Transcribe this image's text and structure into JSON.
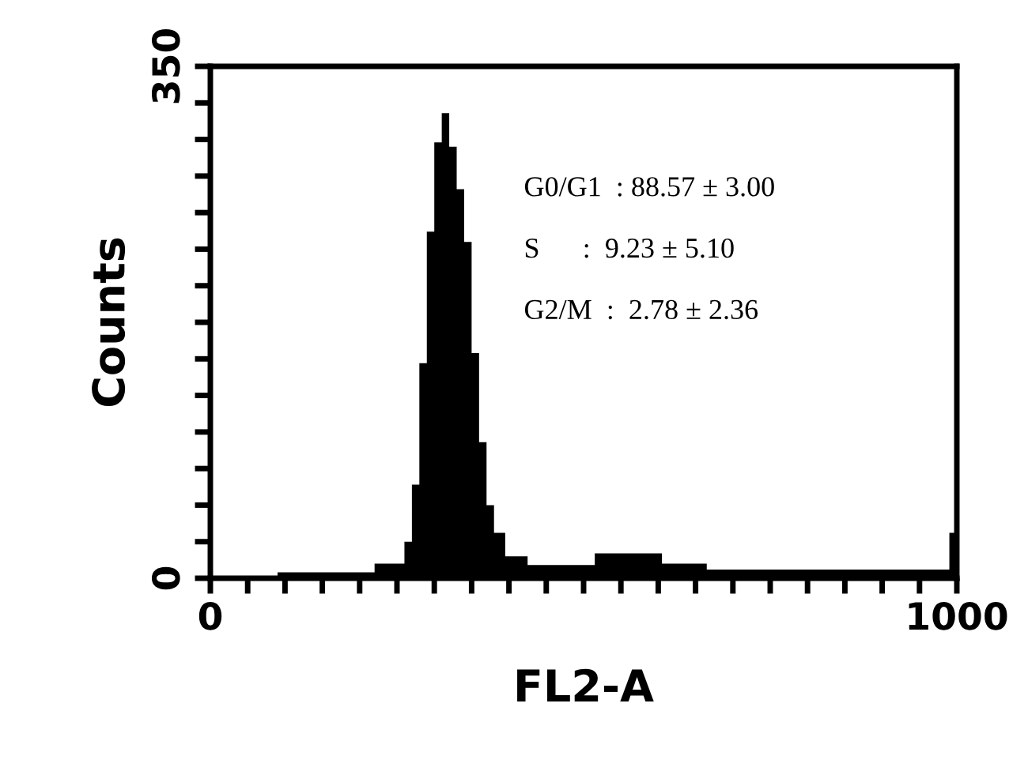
{
  "chart_data": {
    "type": "histogram",
    "xlabel": "FL2-A",
    "ylabel": "Counts",
    "bins": [
      0,
      90,
      220,
      260,
      270,
      280,
      290,
      300,
      310,
      320,
      330,
      340,
      350,
      360,
      370,
      380,
      395,
      425,
      515,
      605,
      665,
      990,
      1000
    ],
    "values": [
      0,
      4,
      10,
      25,
      64,
      147,
      237,
      298,
      318,
      295,
      266,
      230,
      154,
      93,
      50,
      31,
      15,
      9,
      17,
      10,
      6,
      31
    ],
    "color": "#000000",
    "xlim": [
      0,
      1000
    ],
    "xticks": [
      0,
      {
        "value": 50,
        "label": null
      },
      {
        "value": 100,
        "label": null
      },
      {
        "value": 150,
        "label": null
      },
      {
        "value": 200,
        "label": null
      },
      {
        "value": 250,
        "label": null
      },
      {
        "value": 300,
        "label": null
      },
      {
        "value": 350,
        "label": null
      },
      {
        "value": 400,
        "label": null
      },
      {
        "value": 450,
        "label": null
      },
      {
        "value": 500,
        "label": null
      },
      {
        "value": 550,
        "label": null
      },
      {
        "value": 600,
        "label": null
      },
      {
        "value": 650,
        "label": null
      },
      {
        "value": 700,
        "label": null
      },
      {
        "value": 750,
        "label": null
      },
      {
        "value": 800,
        "label": null
      },
      {
        "value": 850,
        "label": null
      },
      {
        "value": 900,
        "label": null
      },
      {
        "value": 950,
        "label": null
      },
      1000
    ],
    "ylim": [
      0,
      350
    ],
    "yticks": [
      0,
      {
        "value": 25,
        "label": null
      },
      {
        "value": 50,
        "label": null
      },
      {
        "value": 75,
        "label": null
      },
      {
        "value": 100,
        "label": null
      },
      {
        "value": 125,
        "label": null
      },
      {
        "value": 150,
        "label": null
      },
      {
        "value": 175,
        "label": null
      },
      {
        "value": 200,
        "label": null
      },
      {
        "value": 225,
        "label": null
      },
      {
        "value": 250,
        "label": null
      },
      {
        "value": 275,
        "label": null
      },
      {
        "value": 300,
        "label": null
      },
      {
        "value": 325,
        "label": null
      },
      350
    ],
    "annotations": [
      "G0/G1  : 88.57 ± 3.00",
      "S      :  9.23 ± 5.10",
      "G2/M  :  2.78 ± 2.36"
    ]
  }
}
